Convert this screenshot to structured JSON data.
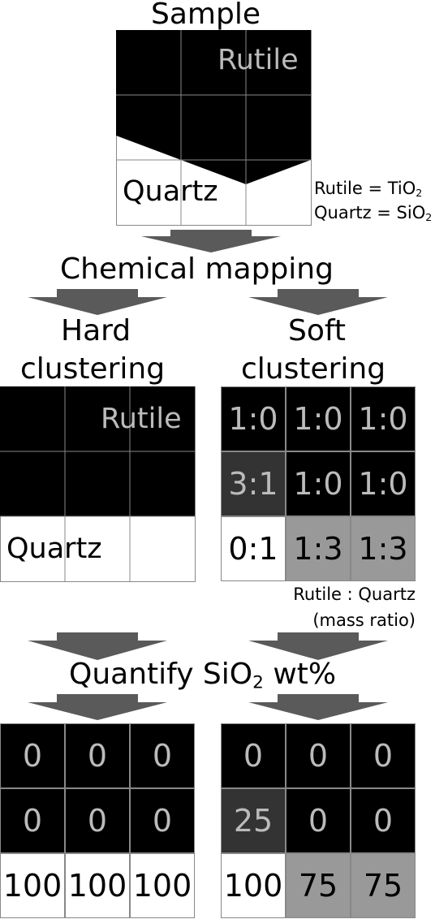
{
  "sample": {
    "title": "Sample",
    "rutile_label": "Rutile",
    "quartz_label": "Quartz"
  },
  "legend": {
    "rutile_prefix": "Rutile = TiO",
    "rutile_sub": "2",
    "quartz_prefix": "Quartz = SiO",
    "quartz_sub": "2"
  },
  "step_chemical_mapping": "Chemical mapping",
  "hard": {
    "title_line1": "Hard",
    "title_line2": "clustering",
    "rutile_label": "Rutile",
    "quartz_label": "Quartz"
  },
  "soft": {
    "title_line1": "Soft",
    "title_line2": "clustering",
    "ratios": [
      [
        "1:0",
        "1:0",
        "1:0"
      ],
      [
        "3:1",
        "1:0",
        "1:0"
      ],
      [
        "0:1",
        "1:3",
        "1:3"
      ]
    ],
    "ratio_caption_line1": "Rutile : Quartz",
    "ratio_caption_line2": "(mass ratio)"
  },
  "step_quantify": {
    "prefix": "Quantify SiO",
    "sub": "2",
    "suffix": " wt%"
  },
  "hard_wt": [
    [
      "0",
      "0",
      "0"
    ],
    [
      "0",
      "0",
      "0"
    ],
    [
      "100",
      "100",
      "100"
    ]
  ],
  "soft_wt": [
    [
      "0",
      "0",
      "0"
    ],
    [
      "25",
      "0",
      "0"
    ],
    [
      "100",
      "75",
      "75"
    ]
  ],
  "colors": {
    "rutile": "#000000",
    "quartz": "#ffffff",
    "mixed_3_1": "#333333",
    "mixed_1_3": "#999999",
    "arrow": "#5a5a5a",
    "cell_text_on_dark": "#bbbbbb"
  }
}
